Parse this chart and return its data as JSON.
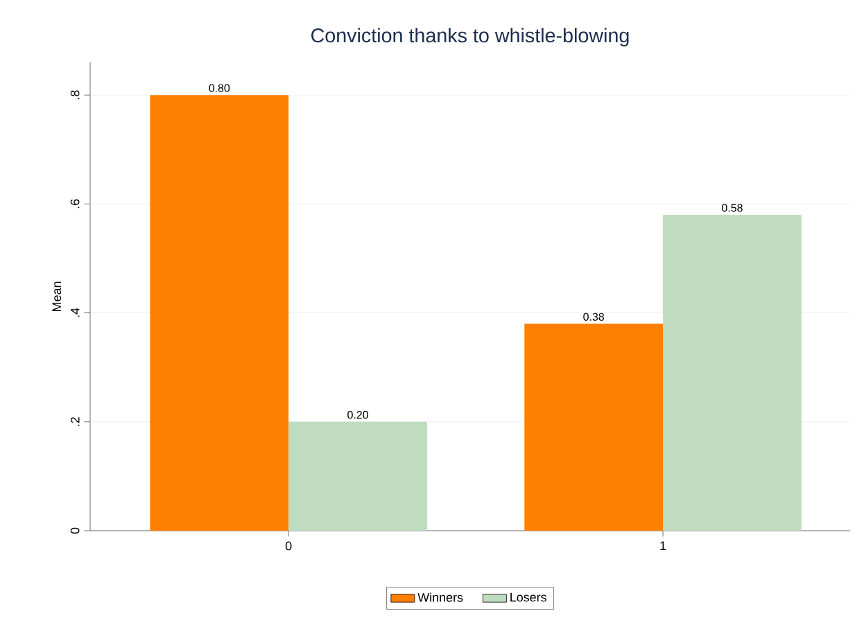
{
  "chart_data": {
    "type": "bar",
    "title": "Conviction thanks to whistle-blowing",
    "ylabel": "Mean",
    "categories": [
      "0",
      "1"
    ],
    "series": [
      {
        "name": "Winners",
        "color": "#ff7f00",
        "values": [
          0.8,
          0.38
        ],
        "value_labels": [
          "0.80",
          "0.38"
        ]
      },
      {
        "name": "Losers",
        "color": "#c0dcc0",
        "values": [
          0.2,
          0.58
        ],
        "value_labels": [
          "0.20",
          "0.58"
        ]
      }
    ],
    "ylim": [
      0,
      0.86
    ],
    "yticks": [
      {
        "value": 0,
        "label": "0"
      },
      {
        "value": 0.2,
        "label": ".2"
      },
      {
        "value": 0.4,
        "label": ".4"
      },
      {
        "value": 0.6,
        "label": ".6"
      },
      {
        "value": 0.8,
        "label": ".8"
      }
    ],
    "grid": "y",
    "legend": "bottom"
  }
}
